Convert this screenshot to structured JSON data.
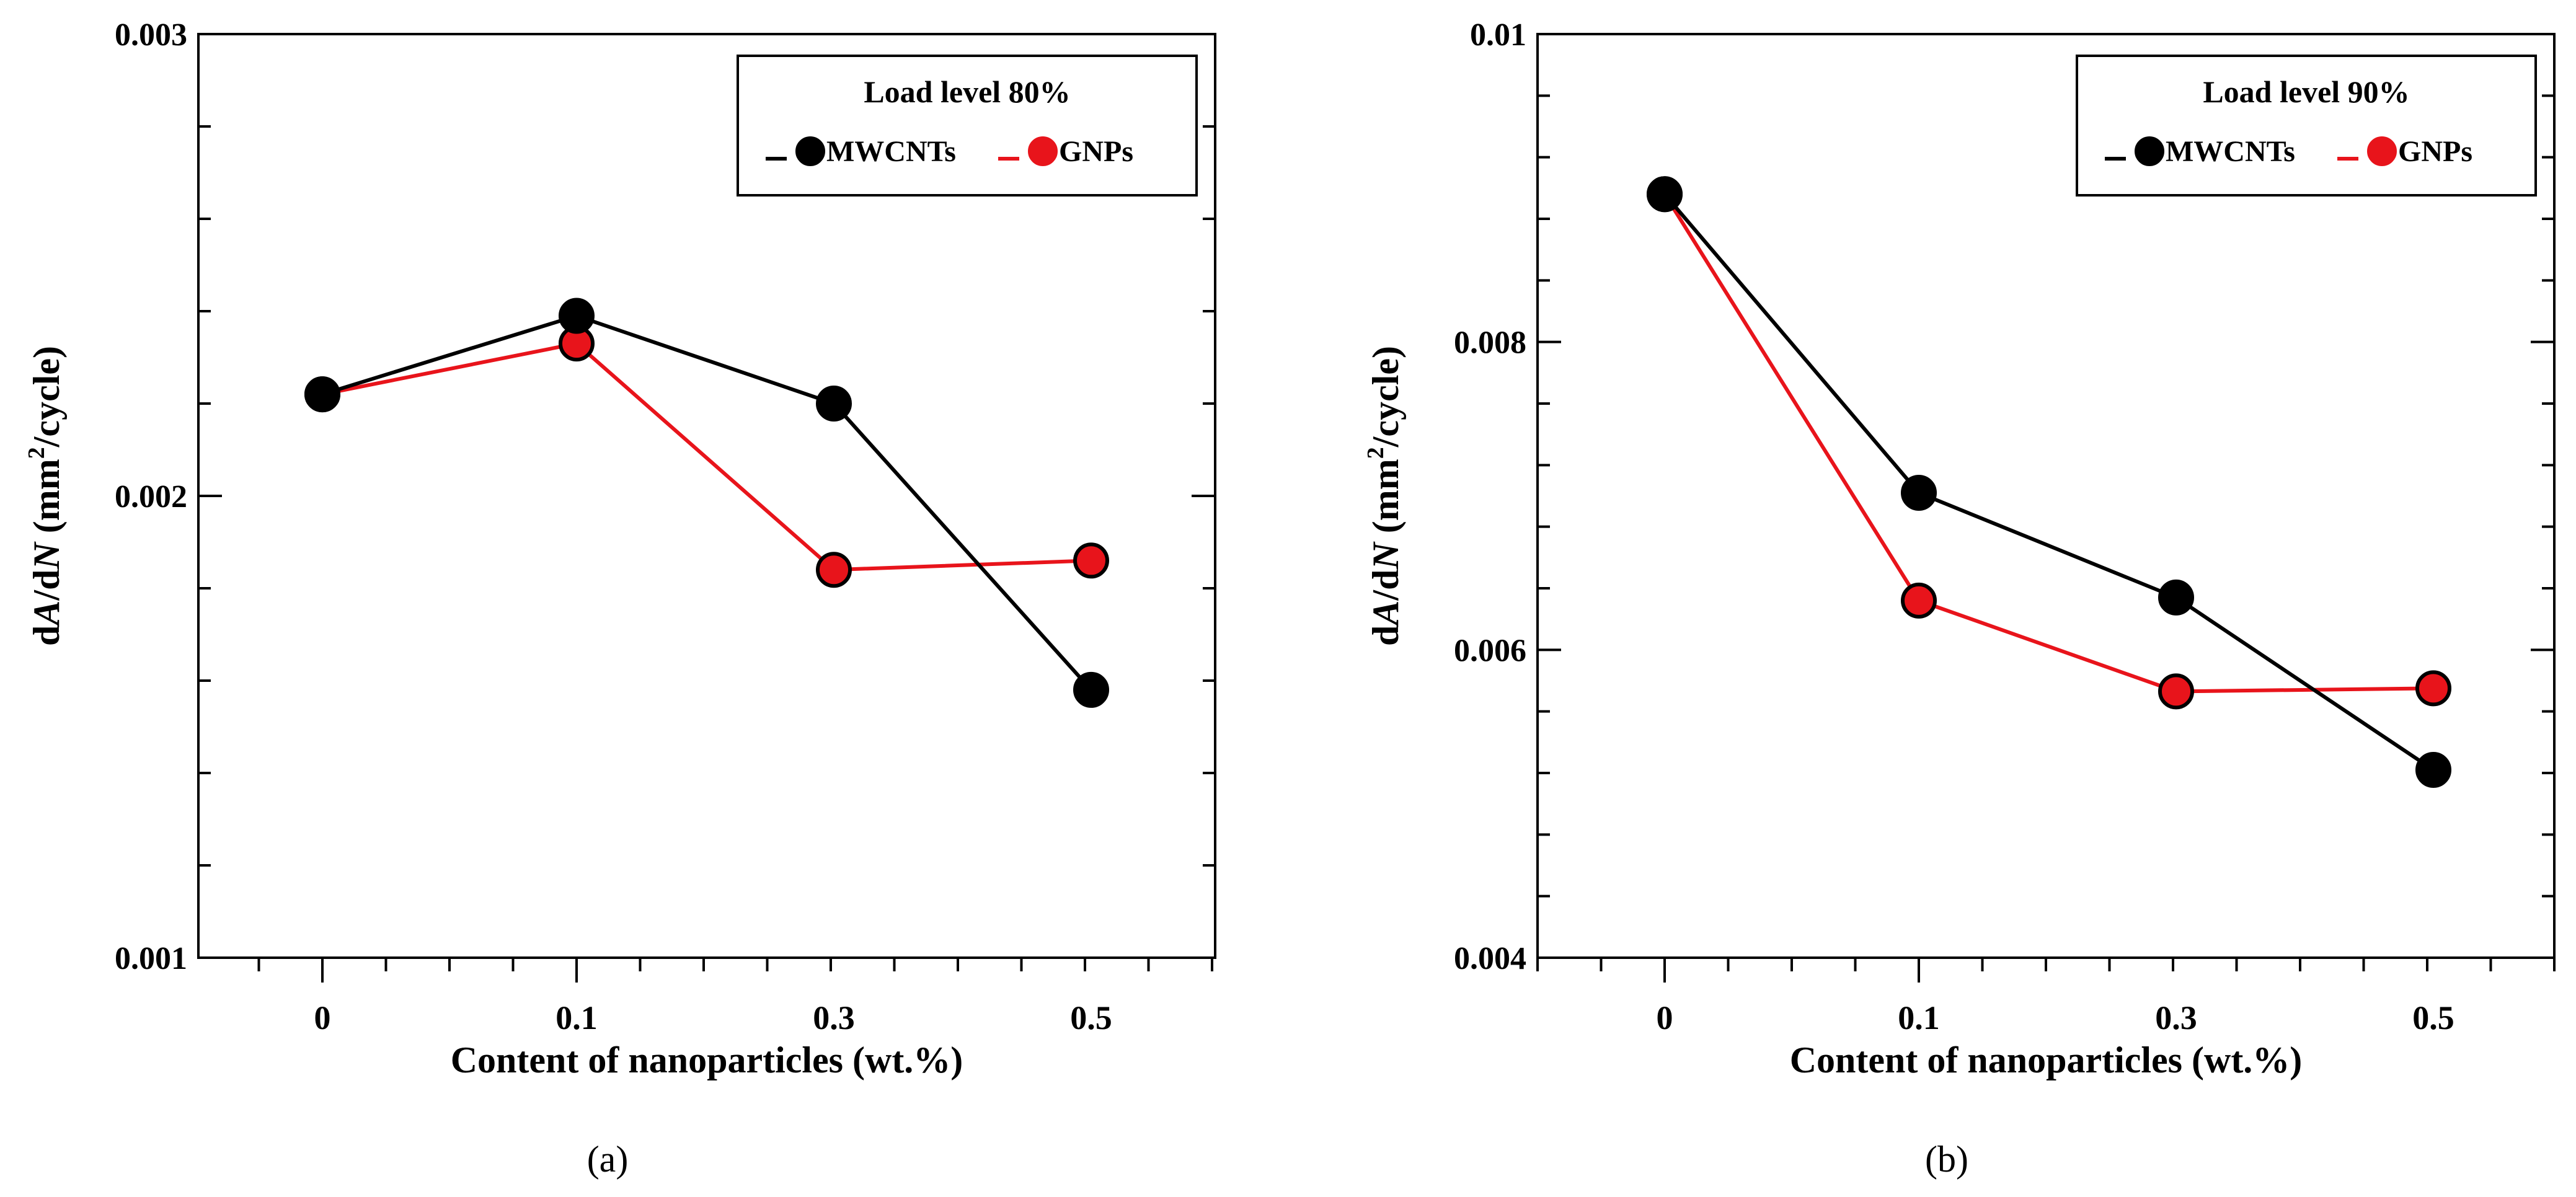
{
  "chart_data": [
    {
      "type": "line",
      "panel_label": "(a)",
      "xlabel": "Content of nanoparticles (wt.%)",
      "ylabel": "dA/dN (mm²/cycle)",
      "ylabel_parts": {
        "prefix": "d",
        "italic1": "A",
        "mid": "/d",
        "italic2": "N",
        "unit_pre": " (mm",
        "sup": "2",
        "unit_post": "/cycle)"
      },
      "categories": [
        "0",
        "0.1",
        "0.3",
        "0.5"
      ],
      "yticks": [
        "0.001",
        "0.002",
        "0.003"
      ],
      "ylim": [
        0.001,
        0.003
      ],
      "legend": {
        "title": "Load level 80%",
        "position": "top-right"
      },
      "series": [
        {
          "name": "MWCNTs",
          "color": "#000000",
          "values": [
            0.00222,
            0.00239,
            0.0022,
            0.00158
          ]
        },
        {
          "name": "GNPs",
          "color": "#e8141b",
          "values": [
            0.00222,
            0.00233,
            0.00184,
            0.00186
          ]
        }
      ]
    },
    {
      "type": "line",
      "panel_label": "(b)",
      "xlabel": "Content of nanoparticles (wt.%)",
      "ylabel": "dA/dN (mm²/cycle)",
      "ylabel_parts": {
        "prefix": "d",
        "italic1": "A",
        "mid": "/d",
        "italic2": "N",
        "unit_pre": " (mm",
        "sup": "2",
        "unit_post": "/cycle)"
      },
      "categories": [
        "0",
        "0.1",
        "0.3",
        "0.5"
      ],
      "yticks": [
        "0.004",
        "0.006",
        "0.008",
        "0.01"
      ],
      "ylim": [
        0.004,
        0.01
      ],
      "legend": {
        "title": "Load level 90%",
        "position": "top-right"
      },
      "series": [
        {
          "name": "MWCNTs",
          "color": "#000000",
          "values": [
            0.00896,
            0.00702,
            0.00634,
            0.00522
          ]
        },
        {
          "name": "GNPs",
          "color": "#e8141b",
          "values": [
            0.00896,
            0.00632,
            0.00573,
            0.00575
          ]
        }
      ]
    }
  ]
}
